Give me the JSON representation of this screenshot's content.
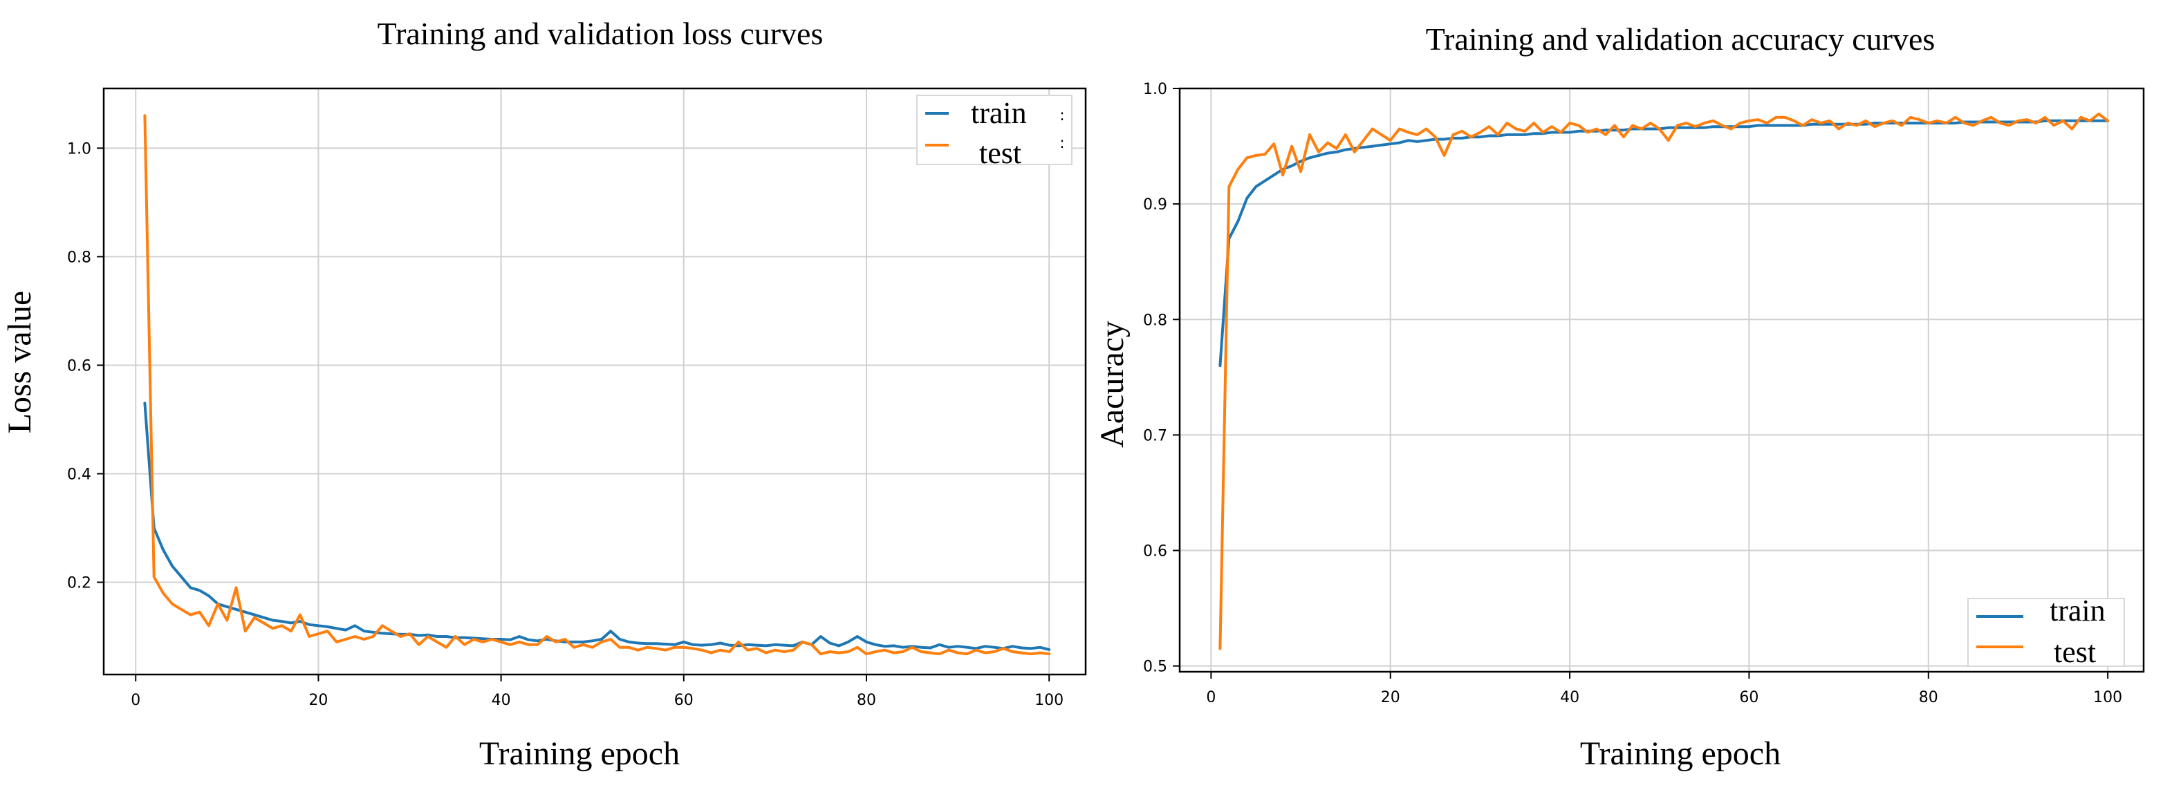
{
  "colors": {
    "train": "#1f77b4",
    "test": "#ff7f0e"
  },
  "chart_data": [
    {
      "type": "line",
      "title": "Training and validation loss curves",
      "xlabel": "Training epoch",
      "ylabel": "Loss value",
      "xlim": [
        -3.5,
        104
      ],
      "ylim": [
        0.03,
        1.11
      ],
      "xticks": [
        0,
        20,
        40,
        60,
        80,
        100
      ],
      "yticks": [
        0.2,
        0.4,
        0.6,
        0.8,
        1.0
      ],
      "xtick_labels": [
        "0",
        "20",
        "40",
        "60",
        "80",
        "100"
      ],
      "ytick_labels": [
        "0.2",
        "0.4",
        "0.6",
        "0.8",
        "1.0"
      ],
      "grid": true,
      "legend_position": "top-right",
      "legend_extra": [
        ":",
        ":"
      ],
      "series": [
        {
          "name": "train",
          "color_key": "train",
          "x": [
            1,
            2,
            3,
            4,
            5,
            6,
            7,
            8,
            9,
            10,
            11,
            12,
            13,
            14,
            15,
            16,
            17,
            18,
            19,
            20,
            21,
            22,
            23,
            24,
            25,
            26,
            27,
            28,
            29,
            30,
            31,
            32,
            33,
            34,
            35,
            36,
            37,
            38,
            39,
            40,
            41,
            42,
            43,
            44,
            45,
            46,
            47,
            48,
            49,
            50,
            51,
            52,
            53,
            54,
            55,
            56,
            57,
            58,
            59,
            60,
            61,
            62,
            63,
            64,
            65,
            66,
            67,
            68,
            69,
            70,
            71,
            72,
            73,
            74,
            75,
            76,
            77,
            78,
            79,
            80,
            81,
            82,
            83,
            84,
            85,
            86,
            87,
            88,
            89,
            90,
            91,
            92,
            93,
            94,
            95,
            96,
            97,
            98,
            99,
            100
          ],
          "values": [
            0.53,
            0.3,
            0.26,
            0.23,
            0.21,
            0.19,
            0.185,
            0.175,
            0.16,
            0.155,
            0.15,
            0.145,
            0.14,
            0.135,
            0.13,
            0.128,
            0.125,
            0.128,
            0.122,
            0.12,
            0.118,
            0.115,
            0.112,
            0.12,
            0.11,
            0.108,
            0.106,
            0.105,
            0.104,
            0.104,
            0.102,
            0.103,
            0.1,
            0.1,
            0.098,
            0.098,
            0.097,
            0.096,
            0.095,
            0.095,
            0.094,
            0.1,
            0.094,
            0.092,
            0.095,
            0.092,
            0.09,
            0.09,
            0.09,
            0.092,
            0.095,
            0.11,
            0.095,
            0.09,
            0.088,
            0.087,
            0.087,
            0.086,
            0.085,
            0.09,
            0.085,
            0.084,
            0.085,
            0.088,
            0.084,
            0.083,
            0.085,
            0.084,
            0.083,
            0.085,
            0.084,
            0.083,
            0.09,
            0.085,
            0.1,
            0.088,
            0.083,
            0.09,
            0.1,
            0.09,
            0.085,
            0.082,
            0.083,
            0.08,
            0.082,
            0.08,
            0.079,
            0.085,
            0.08,
            0.082,
            0.08,
            0.078,
            0.082,
            0.08,
            0.078,
            0.082,
            0.079,
            0.078,
            0.08,
            0.076
          ]
        },
        {
          "name": "test",
          "color_key": "test",
          "x": [
            1,
            2,
            3,
            4,
            5,
            6,
            7,
            8,
            9,
            10,
            11,
            12,
            13,
            14,
            15,
            16,
            17,
            18,
            19,
            20,
            21,
            22,
            23,
            24,
            25,
            26,
            27,
            28,
            29,
            30,
            31,
            32,
            33,
            34,
            35,
            36,
            37,
            38,
            39,
            40,
            41,
            42,
            43,
            44,
            45,
            46,
            47,
            48,
            49,
            50,
            51,
            52,
            53,
            54,
            55,
            56,
            57,
            58,
            59,
            60,
            61,
            62,
            63,
            64,
            65,
            66,
            67,
            68,
            69,
            70,
            71,
            72,
            73,
            74,
            75,
            76,
            77,
            78,
            79,
            80,
            81,
            82,
            83,
            84,
            85,
            86,
            87,
            88,
            89,
            90,
            91,
            92,
            93,
            94,
            95,
            96,
            97,
            98,
            99,
            100
          ],
          "values": [
            1.06,
            0.21,
            0.18,
            0.16,
            0.15,
            0.14,
            0.145,
            0.12,
            0.16,
            0.13,
            0.19,
            0.11,
            0.135,
            0.125,
            0.115,
            0.12,
            0.11,
            0.14,
            0.1,
            0.105,
            0.11,
            0.09,
            0.095,
            0.1,
            0.095,
            0.1,
            0.12,
            0.11,
            0.1,
            0.105,
            0.085,
            0.1,
            0.09,
            0.08,
            0.1,
            0.085,
            0.095,
            0.09,
            0.095,
            0.09,
            0.085,
            0.09,
            0.085,
            0.085,
            0.1,
            0.09,
            0.095,
            0.08,
            0.085,
            0.08,
            0.09,
            0.095,
            0.08,
            0.08,
            0.075,
            0.08,
            0.078,
            0.075,
            0.08,
            0.08,
            0.078,
            0.075,
            0.07,
            0.075,
            0.072,
            0.09,
            0.075,
            0.078,
            0.07,
            0.075,
            0.072,
            0.075,
            0.09,
            0.085,
            0.068,
            0.072,
            0.07,
            0.072,
            0.08,
            0.068,
            0.072,
            0.075,
            0.07,
            0.072,
            0.08,
            0.072,
            0.07,
            0.068,
            0.075,
            0.07,
            0.068,
            0.075,
            0.07,
            0.072,
            0.078,
            0.072,
            0.07,
            0.068,
            0.07,
            0.068
          ]
        }
      ]
    },
    {
      "type": "line",
      "title": "Training and validation accuracy curves",
      "xlabel": "Training epoch",
      "ylabel": "Aacuracy",
      "xlim": [
        -3.5,
        104
      ],
      "ylim": [
        0.495,
        1.0
      ],
      "xticks": [
        0,
        20,
        40,
        60,
        80,
        100
      ],
      "yticks": [
        0.5,
        0.6,
        0.7,
        0.8,
        0.9,
        1.0
      ],
      "xtick_labels": [
        "0",
        "20",
        "40",
        "60",
        "80",
        "100"
      ],
      "ytick_labels": [
        "0.5",
        "0.6",
        "0.7",
        "0.8",
        "0.9",
        "1.0"
      ],
      "grid": true,
      "legend_position": "bottom-right",
      "series": [
        {
          "name": "train",
          "color_key": "train",
          "x": [
            1,
            2,
            3,
            4,
            5,
            6,
            7,
            8,
            9,
            10,
            11,
            12,
            13,
            14,
            15,
            16,
            17,
            18,
            19,
            20,
            21,
            22,
            23,
            24,
            25,
            26,
            27,
            28,
            29,
            30,
            31,
            32,
            33,
            34,
            35,
            36,
            37,
            38,
            39,
            40,
            41,
            42,
            43,
            44,
            45,
            46,
            47,
            48,
            49,
            50,
            51,
            52,
            53,
            54,
            55,
            56,
            57,
            58,
            59,
            60,
            61,
            62,
            63,
            64,
            65,
            66,
            67,
            68,
            69,
            70,
            71,
            72,
            73,
            74,
            75,
            76,
            77,
            78,
            79,
            80,
            81,
            82,
            83,
            84,
            85,
            86,
            87,
            88,
            89,
            90,
            91,
            92,
            93,
            94,
            95,
            96,
            97,
            98,
            99,
            100
          ],
          "values": [
            0.76,
            0.87,
            0.885,
            0.905,
            0.915,
            0.92,
            0.925,
            0.93,
            0.933,
            0.937,
            0.94,
            0.942,
            0.944,
            0.945,
            0.947,
            0.948,
            0.949,
            0.95,
            0.951,
            0.952,
            0.953,
            0.955,
            0.954,
            0.955,
            0.956,
            0.956,
            0.957,
            0.957,
            0.958,
            0.958,
            0.959,
            0.959,
            0.96,
            0.96,
            0.96,
            0.961,
            0.961,
            0.962,
            0.962,
            0.962,
            0.963,
            0.963,
            0.963,
            0.964,
            0.964,
            0.964,
            0.965,
            0.965,
            0.965,
            0.965,
            0.966,
            0.966,
            0.966,
            0.966,
            0.966,
            0.967,
            0.967,
            0.967,
            0.967,
            0.967,
            0.968,
            0.968,
            0.968,
            0.968,
            0.968,
            0.968,
            0.969,
            0.969,
            0.969,
            0.969,
            0.969,
            0.969,
            0.969,
            0.97,
            0.97,
            0.97,
            0.97,
            0.97,
            0.97,
            0.97,
            0.97,
            0.97,
            0.97,
            0.971,
            0.971,
            0.971,
            0.971,
            0.971,
            0.971,
            0.971,
            0.971,
            0.971,
            0.972,
            0.972,
            0.972,
            0.972,
            0.972,
            0.972,
            0.972,
            0.972
          ]
        },
        {
          "name": "test",
          "color_key": "test",
          "x": [
            1,
            2,
            3,
            4,
            5,
            6,
            7,
            8,
            9,
            10,
            11,
            12,
            13,
            14,
            15,
            16,
            17,
            18,
            19,
            20,
            21,
            22,
            23,
            24,
            25,
            26,
            27,
            28,
            29,
            30,
            31,
            32,
            33,
            34,
            35,
            36,
            37,
            38,
            39,
            40,
            41,
            42,
            43,
            44,
            45,
            46,
            47,
            48,
            49,
            50,
            51,
            52,
            53,
            54,
            55,
            56,
            57,
            58,
            59,
            60,
            61,
            62,
            63,
            64,
            65,
            66,
            67,
            68,
            69,
            70,
            71,
            72,
            73,
            74,
            75,
            76,
            77,
            78,
            79,
            80,
            81,
            82,
            83,
            84,
            85,
            86,
            87,
            88,
            89,
            90,
            91,
            92,
            93,
            94,
            95,
            96,
            97,
            98,
            99,
            100
          ],
          "values": [
            0.515,
            0.915,
            0.93,
            0.94,
            0.942,
            0.943,
            0.952,
            0.925,
            0.95,
            0.928,
            0.96,
            0.945,
            0.953,
            0.948,
            0.96,
            0.945,
            0.955,
            0.965,
            0.96,
            0.955,
            0.965,
            0.962,
            0.96,
            0.965,
            0.958,
            0.942,
            0.96,
            0.963,
            0.958,
            0.962,
            0.967,
            0.96,
            0.97,
            0.965,
            0.963,
            0.97,
            0.962,
            0.967,
            0.962,
            0.97,
            0.968,
            0.962,
            0.965,
            0.96,
            0.968,
            0.958,
            0.968,
            0.965,
            0.97,
            0.965,
            0.955,
            0.968,
            0.97,
            0.967,
            0.97,
            0.972,
            0.968,
            0.965,
            0.97,
            0.972,
            0.973,
            0.97,
            0.975,
            0.975,
            0.972,
            0.968,
            0.973,
            0.97,
            0.972,
            0.965,
            0.97,
            0.968,
            0.972,
            0.967,
            0.97,
            0.972,
            0.968,
            0.975,
            0.973,
            0.97,
            0.972,
            0.97,
            0.975,
            0.97,
            0.968,
            0.972,
            0.975,
            0.97,
            0.968,
            0.972,
            0.973,
            0.97,
            0.975,
            0.968,
            0.972,
            0.965,
            0.975,
            0.972,
            0.978,
            0.972
          ]
        }
      ]
    }
  ]
}
